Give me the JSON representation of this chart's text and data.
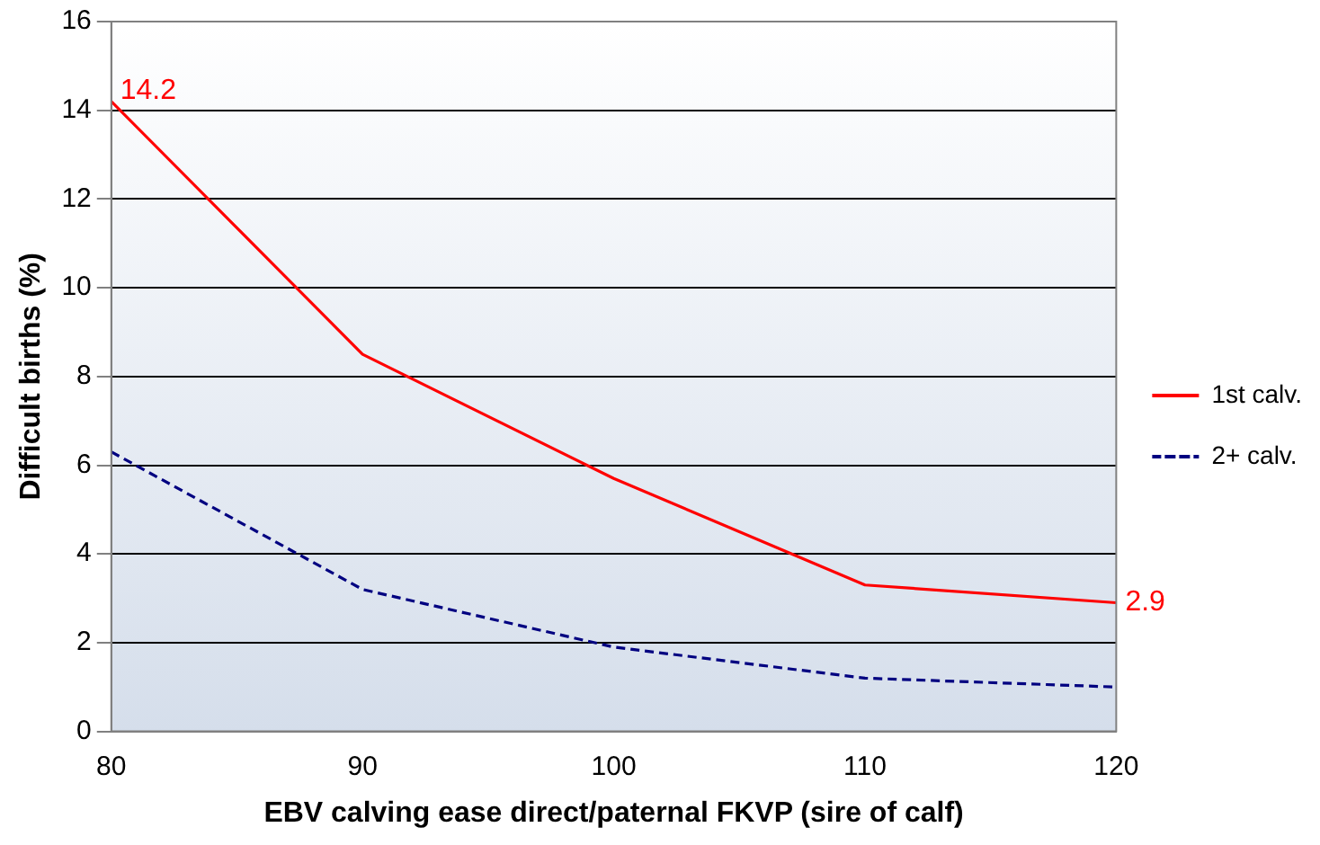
{
  "chart_data": {
    "type": "line",
    "xlabel": "EBV calving ease direct/paternal FKVP (sire of calf)",
    "ylabel": "Difficult births (%)",
    "x": [
      80,
      90,
      100,
      110,
      120
    ],
    "xlim": [
      80,
      120
    ],
    "xticks": [
      80,
      90,
      100,
      110,
      120
    ],
    "ylim": [
      0,
      16
    ],
    "yticks": [
      0,
      2,
      4,
      6,
      8,
      10,
      12,
      14,
      16
    ],
    "grid": "y",
    "legend": "right",
    "marker": "none",
    "series": [
      {
        "name": "1st calv.",
        "color": "#ff0000",
        "values": [
          14.2,
          8.5,
          5.7,
          3.3,
          2.9
        ],
        "line_style": "solid",
        "value_labels": [
          "14.2",
          null,
          null,
          null,
          "2.9"
        ]
      },
      {
        "name": "2+ calv.",
        "color": "#000080",
        "values": [
          6.3,
          3.2,
          1.9,
          1.2,
          1.0
        ],
        "line_style": "dashed"
      }
    ]
  }
}
